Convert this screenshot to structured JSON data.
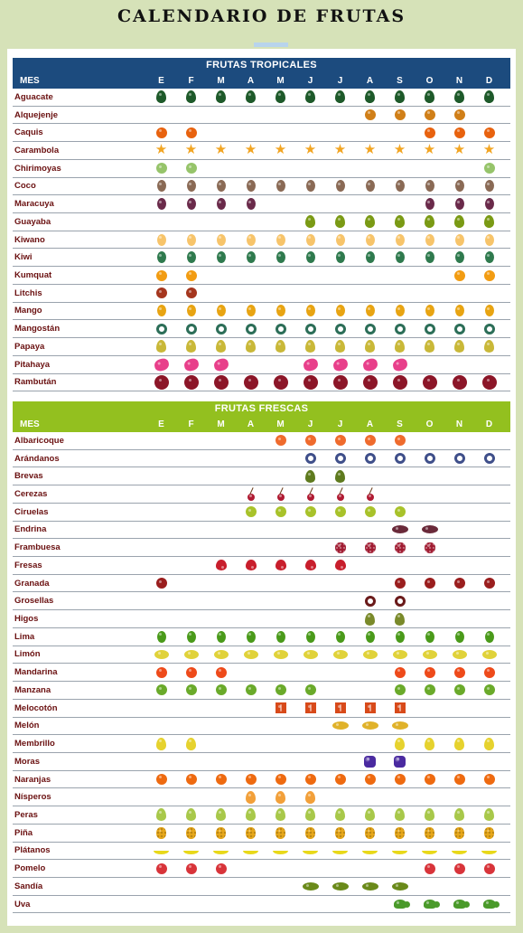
{
  "title": "CALENDARIO DE FRUTAS",
  "tropical": {
    "heading": "FRUTAS TROPICALES",
    "mes_label": "MES",
    "months": [
      "E",
      "F",
      "M",
      "A",
      "M",
      "J",
      "J",
      "A",
      "S",
      "O",
      "N",
      "D"
    ],
    "rows": [
      {
        "name": "Aguacate",
        "icon": "avocado-icon",
        "shape": "drop",
        "color": "#1e5a2a",
        "months": [
          1,
          1,
          1,
          1,
          1,
          1,
          1,
          1,
          1,
          1,
          1,
          1
        ]
      },
      {
        "name": "Alquejenje",
        "icon": "physalis-icon",
        "shape": "round",
        "color": "#d07f18",
        "months": [
          0,
          0,
          0,
          0,
          0,
          0,
          0,
          1,
          1,
          1,
          1,
          0
        ]
      },
      {
        "name": "Caquis",
        "icon": "persimmon-icon",
        "shape": "round",
        "color": "#e8620e",
        "months": [
          1,
          1,
          0,
          0,
          0,
          0,
          0,
          0,
          0,
          1,
          1,
          1
        ]
      },
      {
        "name": "Carambola",
        "icon": "starfruit-icon",
        "shape": "star",
        "color": "#f2a523",
        "months": [
          1,
          1,
          1,
          1,
          1,
          1,
          1,
          1,
          1,
          1,
          1,
          1
        ]
      },
      {
        "name": "Chirimoyas",
        "icon": "cherimoya-icon",
        "shape": "round",
        "color": "#96c46a",
        "months": [
          1,
          1,
          0,
          0,
          0,
          0,
          0,
          0,
          0,
          0,
          0,
          1
        ]
      },
      {
        "name": "Coco",
        "icon": "coconut-icon",
        "shape": "oval",
        "color": "#8a6a55",
        "months": [
          1,
          1,
          1,
          1,
          1,
          1,
          1,
          1,
          1,
          1,
          1,
          1
        ]
      },
      {
        "name": "Maracuya",
        "icon": "passionfruit-icon",
        "shape": "oval",
        "color": "#6a2a4a",
        "months": [
          1,
          1,
          1,
          1,
          0,
          0,
          0,
          0,
          0,
          1,
          1,
          1
        ]
      },
      {
        "name": "Guayaba",
        "icon": "guava-icon",
        "shape": "drop",
        "color": "#7a9a14",
        "months": [
          0,
          0,
          0,
          0,
          0,
          1,
          1,
          1,
          1,
          1,
          1,
          1
        ]
      },
      {
        "name": "Kiwano",
        "icon": "kiwano-icon",
        "shape": "oval",
        "color": "#f7c46a",
        "months": [
          1,
          1,
          1,
          1,
          1,
          1,
          1,
          1,
          1,
          1,
          1,
          1
        ]
      },
      {
        "name": "Kiwi",
        "icon": "kiwi-icon",
        "shape": "oval",
        "color": "#2f7a4e",
        "months": [
          1,
          1,
          1,
          1,
          1,
          1,
          1,
          1,
          1,
          1,
          1,
          1
        ]
      },
      {
        "name": "Kumquat",
        "icon": "kumquat-icon",
        "shape": "round",
        "color": "#f29c12",
        "months": [
          1,
          1,
          0,
          0,
          0,
          0,
          0,
          0,
          0,
          0,
          1,
          1
        ]
      },
      {
        "name": "Litchis",
        "icon": "lychee-icon",
        "shape": "round",
        "color": "#a5361e",
        "months": [
          1,
          1,
          0,
          0,
          0,
          0,
          0,
          0,
          0,
          0,
          0,
          0
        ]
      },
      {
        "name": "Mango",
        "icon": "mango-icon",
        "shape": "oval",
        "color": "#e8a412",
        "months": [
          1,
          1,
          1,
          1,
          1,
          1,
          1,
          1,
          1,
          1,
          1,
          1
        ]
      },
      {
        "name": "Mangostán",
        "icon": "mangosteen-icon",
        "shape": "ring",
        "color": "#2c6e58",
        "months": [
          1,
          1,
          1,
          1,
          1,
          1,
          1,
          1,
          1,
          1,
          1,
          1
        ]
      },
      {
        "name": "Papaya",
        "icon": "papaya-icon",
        "shape": "pear",
        "color": "#c9b838",
        "months": [
          1,
          1,
          1,
          1,
          1,
          1,
          1,
          1,
          1,
          1,
          1,
          1
        ]
      },
      {
        "name": "Pitahaya",
        "icon": "pitaya-icon",
        "shape": "pitaya",
        "color": "#e83f8a",
        "months": [
          1,
          1,
          1,
          0,
          0,
          1,
          1,
          1,
          1,
          0,
          0,
          0
        ]
      },
      {
        "name": "Rambután",
        "icon": "rambutan-icon",
        "shape": "spiky",
        "color": "#8c1628",
        "months": [
          1,
          1,
          1,
          1,
          1,
          1,
          1,
          1,
          1,
          1,
          1,
          1
        ]
      }
    ]
  },
  "fresh": {
    "heading": "FRUTAS FRESCAS",
    "mes_label": "MES",
    "months": [
      "E",
      "F",
      "M",
      "A",
      "M",
      "J",
      "J",
      "A",
      "S",
      "O",
      "N",
      "D"
    ],
    "rows": [
      {
        "name": "Albaricoque",
        "icon": "apricot-icon",
        "shape": "round",
        "color": "#ef6b2d",
        "months": [
          0,
          0,
          0,
          0,
          1,
          1,
          1,
          1,
          1,
          0,
          0,
          0
        ]
      },
      {
        "name": "Arándanos",
        "icon": "blueberry-icon",
        "shape": "ring",
        "color": "#3f4f8a",
        "months": [
          0,
          0,
          0,
          0,
          0,
          1,
          1,
          1,
          1,
          1,
          1,
          1
        ]
      },
      {
        "name": "Brevas",
        "icon": "fig-icon",
        "shape": "pear",
        "color": "#5e7a1e",
        "months": [
          0,
          0,
          0,
          0,
          0,
          1,
          1,
          0,
          0,
          0,
          0,
          0
        ]
      },
      {
        "name": "Cerezas",
        "icon": "cherry-icon",
        "shape": "cherry",
        "color": "#b01a32",
        "months": [
          0,
          0,
          0,
          1,
          1,
          1,
          1,
          1,
          0,
          0,
          0,
          0
        ]
      },
      {
        "name": "Ciruelas",
        "icon": "plum-icon",
        "shape": "round",
        "color": "#a8c22a",
        "months": [
          0,
          0,
          0,
          1,
          1,
          1,
          1,
          1,
          1,
          0,
          0,
          0
        ]
      },
      {
        "name": "Endrina",
        "icon": "sloe-icon",
        "shape": "flat",
        "color": "#6a2a3a",
        "months": [
          0,
          0,
          0,
          0,
          0,
          0,
          0,
          0,
          1,
          1,
          0,
          0
        ]
      },
      {
        "name": "Frambuesa",
        "icon": "raspberry-icon",
        "shape": "berry",
        "color": "#a01a30",
        "months": [
          0,
          0,
          0,
          0,
          0,
          0,
          1,
          1,
          1,
          1,
          0,
          0
        ]
      },
      {
        "name": "Fresas",
        "icon": "strawberry-icon",
        "shape": "heart",
        "color": "#c81e2c",
        "months": [
          0,
          0,
          1,
          1,
          1,
          1,
          1,
          0,
          0,
          0,
          0,
          0
        ]
      },
      {
        "name": "Granada",
        "icon": "pomegranate-icon",
        "shape": "round",
        "color": "#9a1e1e",
        "months": [
          1,
          0,
          0,
          0,
          0,
          0,
          0,
          0,
          1,
          1,
          1,
          1
        ]
      },
      {
        "name": "Grosellas",
        "icon": "currant-icon",
        "shape": "ring",
        "color": "#6a1a1a",
        "months": [
          0,
          0,
          0,
          0,
          0,
          0,
          0,
          1,
          1,
          0,
          0,
          0
        ]
      },
      {
        "name": "Higos",
        "icon": "fig-icon",
        "shape": "pear",
        "color": "#7a8a2a",
        "months": [
          0,
          0,
          0,
          0,
          0,
          0,
          0,
          1,
          1,
          0,
          0,
          0
        ]
      },
      {
        "name": "Lima",
        "icon": "lime-icon",
        "shape": "oval",
        "color": "#4a9a1a",
        "months": [
          1,
          1,
          1,
          1,
          1,
          1,
          1,
          1,
          1,
          1,
          1,
          1
        ]
      },
      {
        "name": "Limón",
        "icon": "lemon-icon",
        "shape": "lemon",
        "color": "#e0d23a",
        "months": [
          1,
          1,
          1,
          1,
          1,
          1,
          1,
          1,
          1,
          1,
          1,
          1
        ]
      },
      {
        "name": "Mandarina",
        "icon": "tangerine-icon",
        "shape": "round",
        "color": "#ee4a1a",
        "months": [
          1,
          1,
          1,
          0,
          0,
          0,
          0,
          0,
          1,
          1,
          1,
          1
        ]
      },
      {
        "name": "Manzana",
        "icon": "apple-icon",
        "shape": "round",
        "color": "#6aaa2a",
        "months": [
          1,
          1,
          1,
          1,
          1,
          1,
          0,
          0,
          1,
          1,
          1,
          1
        ]
      },
      {
        "name": "Melocotón",
        "icon": "peach-icon",
        "shape": "split",
        "color": "#d84a1a",
        "months": [
          0,
          0,
          0,
          0,
          1,
          1,
          1,
          1,
          1,
          0,
          0,
          0
        ]
      },
      {
        "name": "Melón",
        "icon": "melon-icon",
        "shape": "flat",
        "color": "#e0b22a",
        "months": [
          0,
          0,
          0,
          0,
          0,
          0,
          1,
          1,
          1,
          0,
          0,
          0
        ]
      },
      {
        "name": "Membrillo",
        "icon": "quince-icon",
        "shape": "drop",
        "color": "#e6d22e",
        "months": [
          1,
          1,
          0,
          0,
          0,
          0,
          0,
          0,
          1,
          1,
          1,
          1
        ]
      },
      {
        "name": "Moras",
        "icon": "blackberry-icon",
        "shape": "grape",
        "color": "#4a2aa0",
        "months": [
          0,
          0,
          0,
          0,
          0,
          0,
          0,
          1,
          1,
          0,
          0,
          0
        ]
      },
      {
        "name": "Naranjas",
        "icon": "orange-icon",
        "shape": "round",
        "color": "#ee6a10",
        "months": [
          1,
          1,
          1,
          1,
          1,
          1,
          1,
          1,
          1,
          1,
          1,
          1
        ]
      },
      {
        "name": "Nísperos",
        "icon": "loquat-icon",
        "shape": "drop",
        "color": "#f2a03a",
        "months": [
          0,
          0,
          0,
          1,
          1,
          1,
          0,
          0,
          0,
          0,
          0,
          0
        ]
      },
      {
        "name": "Peras",
        "icon": "pear-icon",
        "shape": "pear",
        "color": "#a8c84a",
        "months": [
          1,
          1,
          1,
          1,
          1,
          1,
          1,
          1,
          1,
          1,
          1,
          1
        ]
      },
      {
        "name": "Piña",
        "icon": "pineapple-icon",
        "shape": "pine",
        "color": "#e8a81a",
        "months": [
          1,
          1,
          1,
          1,
          1,
          1,
          1,
          1,
          1,
          1,
          1,
          1
        ]
      },
      {
        "name": "Plátanos",
        "icon": "banana-icon",
        "shape": "banana",
        "color": "#e8d81a",
        "months": [
          1,
          1,
          1,
          1,
          1,
          1,
          1,
          1,
          1,
          1,
          1,
          1
        ]
      },
      {
        "name": "Pomelo",
        "icon": "grapefruit-icon",
        "shape": "round",
        "color": "#d8343a",
        "months": [
          1,
          1,
          1,
          0,
          0,
          0,
          0,
          0,
          0,
          1,
          1,
          1
        ]
      },
      {
        "name": "Sandía",
        "icon": "watermelon-icon",
        "shape": "flat",
        "color": "#6a8a1a",
        "months": [
          0,
          0,
          0,
          0,
          0,
          1,
          1,
          1,
          1,
          0,
          0,
          0
        ]
      },
      {
        "name": "Uva",
        "icon": "grape-icon",
        "shape": "leaves",
        "color": "#4a9a2a",
        "months": [
          0,
          0,
          0,
          0,
          0,
          0,
          0,
          0,
          1,
          1,
          1,
          1
        ]
      }
    ]
  }
}
